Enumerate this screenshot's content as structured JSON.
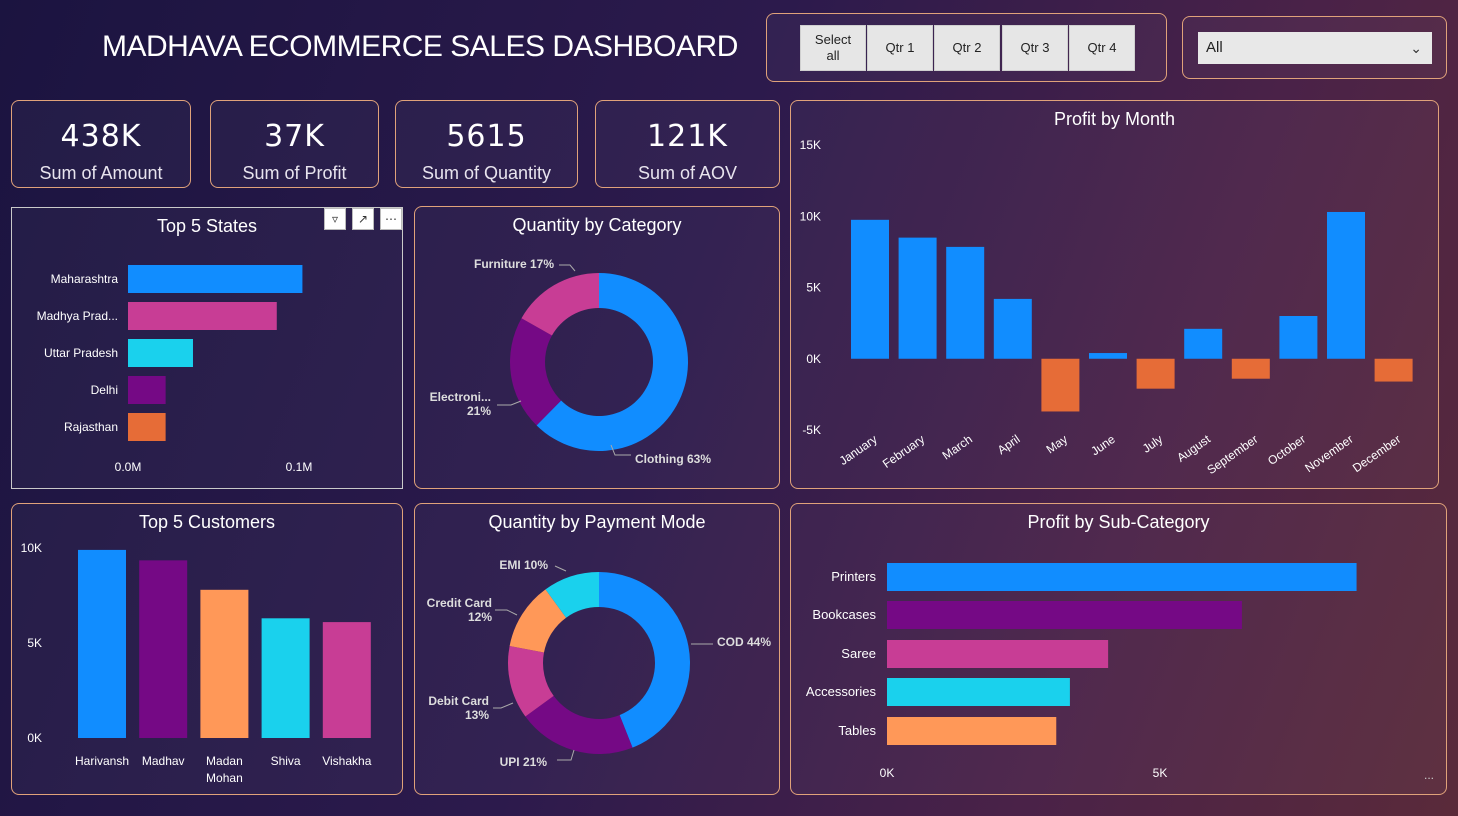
{
  "header": {
    "title": "MADHAVA ECOMMERCE SALES DASHBOARD"
  },
  "slicer": {
    "buttons": [
      "Select all",
      "Qtr 1",
      "Qtr 2",
      "Qtr 3",
      "Qtr 4"
    ]
  },
  "dropdown": {
    "value": "All"
  },
  "kpis": [
    {
      "value": "438K",
      "label": "Sum of Amount"
    },
    {
      "value": "37K",
      "label": "Sum of Profit"
    },
    {
      "value": "5615",
      "label": "Sum of Quantity"
    },
    {
      "value": "121K",
      "label": "Sum of AOV"
    }
  ],
  "colors": {
    "blue": "#118dff",
    "purple": "#750985",
    "pink": "#c83d95",
    "cyan": "#1ad1ed",
    "orange_state": "#e66c37",
    "orange": "#ff9858",
    "loss": "#e66c37"
  },
  "chart_data": [
    {
      "id": "top_states",
      "type": "bar",
      "orientation": "horizontal",
      "title": "Top 5 States",
      "categories": [
        "Maharashtra",
        "Madhya Prad...",
        "Uttar Pradesh",
        "Delhi",
        "Rajasthan"
      ],
      "values": [
        0.102,
        0.087,
        0.038,
        0.022,
        0.022
      ],
      "ticks": [
        "0.0M",
        "0.1M"
      ],
      "tick_values": [
        0,
        0.1
      ],
      "colors": [
        "#118dff",
        "#c83d95",
        "#1ad1ed",
        "#750985",
        "#e66c37"
      ]
    },
    {
      "id": "qty_category",
      "type": "pie",
      "donut": true,
      "title": "Quantity by Category",
      "labels": [
        "Clothing",
        "Electroni...",
        "Furniture"
      ],
      "label_texts": [
        "Clothing 63%",
        "Electroni... 21%",
        "Furniture 17%"
      ],
      "values": [
        63,
        21,
        17
      ],
      "colors": [
        "#118dff",
        "#750985",
        "#c83d95"
      ]
    },
    {
      "id": "profit_month",
      "type": "bar",
      "title": "Profit by Month",
      "categories": [
        "January",
        "February",
        "March",
        "April",
        "May",
        "June",
        "July",
        "August",
        "September",
        "October",
        "November",
        "December"
      ],
      "values": [
        9750,
        8500,
        7850,
        4200,
        -3700,
        400,
        -2100,
        2100,
        -1400,
        3000,
        10300,
        -1600
      ],
      "ylim": [
        -5000,
        15000
      ],
      "ticks": [
        "15K",
        "10K",
        "5K",
        "0K",
        "-5K"
      ],
      "tick_values": [
        15000,
        10000,
        5000,
        0,
        -5000
      ],
      "colors": {
        "positive": "#118dff",
        "negative": "#e66c37"
      }
    },
    {
      "id": "top_customers",
      "type": "bar",
      "title": "Top 5 Customers",
      "categories": [
        "Harivansh",
        "Madhav",
        "Madan Mohan",
        "Shiva",
        "Vishakha"
      ],
      "category_lines": [
        [
          "Harivansh"
        ],
        [
          "Madhav"
        ],
        [
          "Madan",
          "Mohan"
        ],
        [
          "Shiva"
        ],
        [
          "Vishakha"
        ]
      ],
      "values": [
        9900,
        9350,
        7800,
        6300,
        6100
      ],
      "ylim": [
        0,
        10000
      ],
      "ticks": [
        "10K",
        "5K",
        "0K"
      ],
      "tick_values": [
        10000,
        5000,
        0
      ],
      "colors": [
        "#118dff",
        "#750985",
        "#ff9858",
        "#1ad1ed",
        "#c83d95"
      ]
    },
    {
      "id": "qty_payment",
      "type": "pie",
      "donut": true,
      "title": "Quantity by Payment Mode",
      "labels": [
        "COD",
        "UPI",
        "Debit Card",
        "Credit Card",
        "EMI"
      ],
      "label_texts": [
        "COD 44%",
        "UPI 21%",
        "Debit Card 13%",
        "Credit Card 12%",
        "EMI 10%"
      ],
      "values": [
        44,
        21,
        13,
        12,
        10
      ],
      "colors": [
        "#118dff",
        "#750985",
        "#c83d95",
        "#ff9858",
        "#1ad1ed"
      ]
    },
    {
      "id": "profit_subcat",
      "type": "bar",
      "orientation": "horizontal",
      "title": "Profit by Sub-Category",
      "categories": [
        "Printers",
        "Bookcases",
        "Saree",
        "Accessories",
        "Tables"
      ],
      "values": [
        8600,
        6500,
        4050,
        3350,
        3100
      ],
      "ticks": [
        "0K",
        "5K"
      ],
      "tick_values": [
        0,
        5000
      ],
      "colors": [
        "#118dff",
        "#750985",
        "#c83d95",
        "#1ad1ed",
        "#ff9858"
      ]
    }
  ],
  "more_label": "..."
}
